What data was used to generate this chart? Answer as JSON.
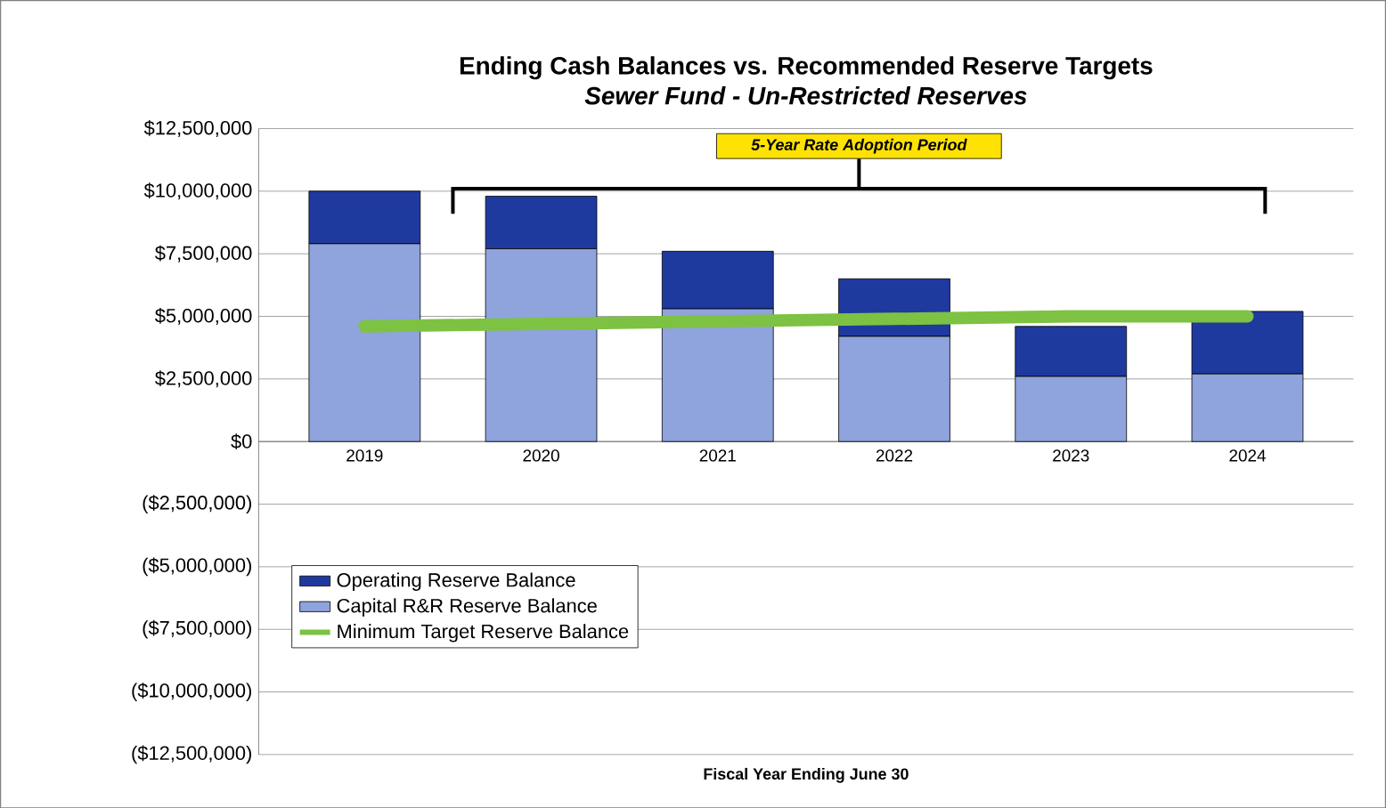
{
  "chart_data": {
    "type": "bar",
    "stacked": true,
    "title": "Ending Cash Balances vs. Recommended Reserve Targets",
    "subtitle": "Sewer Fund - Un-Restricted Reserves",
    "xlabel": "Fiscal Year Ending June 30",
    "categories": [
      "2019",
      "2020",
      "2021",
      "2022",
      "2023",
      "2024"
    ],
    "series": [
      {
        "name": "Capital R&R Reserve Balance",
        "color": "#8fa3dc",
        "values": [
          7900000,
          7700000,
          5300000,
          4200000,
          2600000,
          2700000
        ]
      },
      {
        "name": "Operating Reserve Balance",
        "color": "#1f3a9e",
        "values": [
          2100000,
          2100000,
          2300000,
          2300000,
          2000000,
          2500000
        ]
      },
      {
        "name": "Minimum Target Reserve Balance",
        "type": "line",
        "color": "#7dc242",
        "values": [
          4600000,
          4700000,
          4800000,
          4900000,
          5000000,
          5000000
        ]
      }
    ],
    "ylim": [
      -12500000,
      12500000
    ],
    "yticks": [
      {
        "value": -12500000,
        "label": "($12,500,000)"
      },
      {
        "value": -10000000,
        "label": "($10,000,000)"
      },
      {
        "value": -7500000,
        "label": "($7,500,000)"
      },
      {
        "value": -5000000,
        "label": "($5,000,000)"
      },
      {
        "value": -2500000,
        "label": "($2,500,000)"
      },
      {
        "value": 0,
        "label": "$0"
      },
      {
        "value": 2500000,
        "label": "$2,500,000"
      },
      {
        "value": 5000000,
        "label": "$5,000,000"
      },
      {
        "value": 7500000,
        "label": "$7,500,000"
      },
      {
        "value": 10000000,
        "label": "$10,000,000"
      },
      {
        "value": 12500000,
        "label": "$12,500,000"
      }
    ],
    "grid": "y",
    "legend": "bottom left",
    "annotations": [
      "5-Year Rate Adoption Period"
    ]
  }
}
